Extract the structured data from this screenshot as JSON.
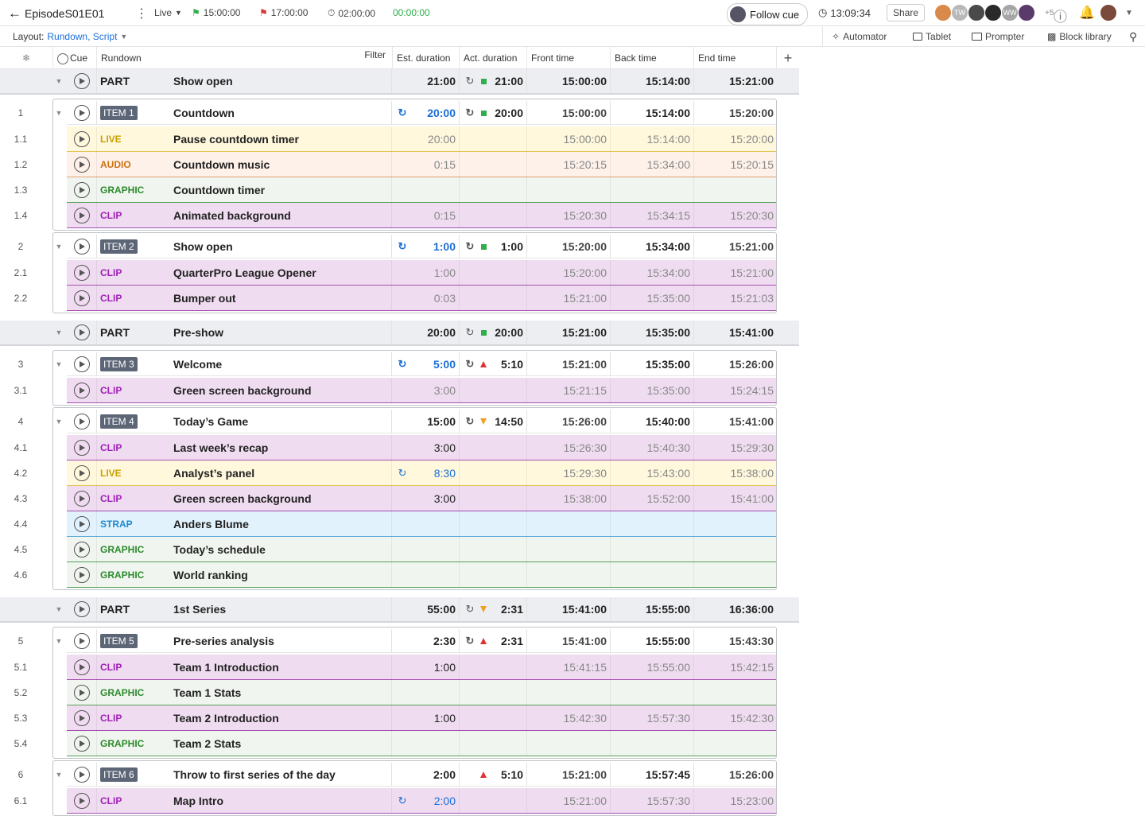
{
  "header": {
    "episode": "EpisodeS01E01",
    "mode": "Live",
    "start_time": "15:00:00",
    "end_flag_time": "17:00:00",
    "duration": "02:00:00",
    "timer": "00:00:00",
    "follow_cue": "Follow cue",
    "clock": "13:09:34",
    "share": "Share",
    "extra_users": "+5",
    "avatars": [
      "TW",
      "WW"
    ]
  },
  "layout": {
    "label": "Layout:",
    "value": "Rundown, Script",
    "automator": "Automator",
    "tablet": "Tablet",
    "prompter": "Prompter",
    "block_library": "Block library"
  },
  "columns": {
    "cue": "Cue",
    "rundown": "Rundown",
    "filter": "Filter",
    "est": "Est. duration",
    "act": "Act. duration",
    "front": "Front time",
    "back": "Back time",
    "end": "End time"
  },
  "colors": {
    "LIVE": "#c8a000",
    "AUDIO": "#d07010",
    "GRAPHIC": "#2e8a2e",
    "CLIP": "#a020b8",
    "STRAP": "#1a8ad0"
  },
  "rows": [
    {
      "kind": "part",
      "label": "PART",
      "title": "Show open",
      "est": "21:00",
      "act": "21:00",
      "status": "ok",
      "front": "15:00:00",
      "back": "15:14:00",
      "end": "15:21:00"
    },
    {
      "kind": "item",
      "num": "1",
      "badge": "ITEM 1",
      "title": "Countdown",
      "est": "20:00",
      "est_blue": true,
      "act": "20:00",
      "status": "ok",
      "front": "15:00:00",
      "back": "15:14:00",
      "end": "15:20:00"
    },
    {
      "kind": "sub",
      "num": "1.1",
      "type": "LIVE",
      "title": "Pause countdown timer",
      "est": "20:00",
      "act": "",
      "front": "15:00:00",
      "back": "15:14:00",
      "end": "15:20:00"
    },
    {
      "kind": "sub",
      "num": "1.2",
      "type": "AUDIO",
      "title": "Countdown music",
      "est": "0:15",
      "act": "",
      "front": "15:20:15",
      "back": "15:34:00",
      "end": "15:20:15"
    },
    {
      "kind": "sub",
      "num": "1.3",
      "type": "GRAPHIC",
      "title": "Countdown timer",
      "est": "",
      "act": "",
      "front": "",
      "back": "",
      "end": ""
    },
    {
      "kind": "sub",
      "num": "1.4",
      "type": "CLIP",
      "title": "Animated background",
      "est": "0:15",
      "act": "",
      "front": "15:20:30",
      "back": "15:34:15",
      "end": "15:20:30"
    },
    {
      "kind": "item",
      "num": "2",
      "badge": "ITEM 2",
      "title": "Show open",
      "est": "1:00",
      "est_blue": true,
      "act": "1:00",
      "status": "ok",
      "front": "15:20:00",
      "back": "15:34:00",
      "end": "15:21:00"
    },
    {
      "kind": "sub",
      "num": "2.1",
      "type": "CLIP",
      "title": "QuarterPro League Opener",
      "est": "1:00",
      "act": "",
      "front": "15:20:00",
      "back": "15:34:00",
      "end": "15:21:00"
    },
    {
      "kind": "sub",
      "num": "2.2",
      "type": "CLIP",
      "title": "Bumper out",
      "est": "0:03",
      "act": "",
      "front": "15:21:00",
      "back": "15:35:00",
      "end": "15:21:03"
    },
    {
      "kind": "part",
      "label": "PART",
      "title": "Pre-show",
      "est": "20:00",
      "act": "20:00",
      "status": "ok",
      "front": "15:21:00",
      "back": "15:35:00",
      "end": "15:41:00"
    },
    {
      "kind": "item",
      "num": "3",
      "badge": "ITEM 3",
      "title": "Welcome",
      "est": "5:00",
      "est_blue": true,
      "act": "5:10",
      "status": "over",
      "front": "15:21:00",
      "back": "15:35:00",
      "end": "15:26:00"
    },
    {
      "kind": "sub",
      "num": "3.1",
      "type": "CLIP",
      "title": "Green screen background",
      "est": "3:00",
      "act": "",
      "front": "15:21:15",
      "back": "15:35:00",
      "end": "15:24:15"
    },
    {
      "kind": "item",
      "num": "4",
      "badge": "ITEM 4",
      "title": "Today’s Game",
      "est": "15:00",
      "est_blue": false,
      "act": "14:50",
      "status": "under",
      "front": "15:26:00",
      "back": "15:40:00",
      "end": "15:41:00"
    },
    {
      "kind": "sub",
      "num": "4.1",
      "type": "CLIP",
      "title": "Last week’s recap",
      "est": "3:00",
      "est_dark": true,
      "act": "",
      "front": "15:26:30",
      "back": "15:40:30",
      "end": "15:29:30"
    },
    {
      "kind": "sub",
      "num": "4.2",
      "type": "LIVE",
      "title": "Analyst’s panel",
      "est": "8:30",
      "est_blue": true,
      "act": "",
      "front": "15:29:30",
      "back": "15:43:00",
      "end": "15:38:00"
    },
    {
      "kind": "sub",
      "num": "4.3",
      "type": "CLIP",
      "title": "Green screen background",
      "est": "3:00",
      "est_dark": true,
      "act": "",
      "front": "15:38:00",
      "back": "15:52:00",
      "end": "15:41:00"
    },
    {
      "kind": "sub",
      "num": "4.4",
      "type": "STRAP",
      "title": "Anders Blume",
      "est": "",
      "act": "",
      "front": "",
      "back": "",
      "end": ""
    },
    {
      "kind": "sub",
      "num": "4.5",
      "type": "GRAPHIC",
      "title": "Today’s schedule",
      "est": "",
      "act": "",
      "front": "",
      "back": "",
      "end": ""
    },
    {
      "kind": "sub",
      "num": "4.6",
      "type": "GRAPHIC",
      "title": "World ranking",
      "est": "",
      "act": "",
      "front": "",
      "back": "",
      "end": ""
    },
    {
      "kind": "part",
      "label": "PART",
      "title": "1st Series",
      "est": "55:00",
      "act": "2:31",
      "status": "under",
      "front": "15:41:00",
      "back": "15:55:00",
      "end": "16:36:00"
    },
    {
      "kind": "item",
      "num": "5",
      "badge": "ITEM 5",
      "title": "Pre-series analysis",
      "est": "2:30",
      "est_blue": false,
      "act": "2:31",
      "status": "over",
      "front": "15:41:00",
      "back": "15:55:00",
      "end": "15:43:30"
    },
    {
      "kind": "sub",
      "num": "5.1",
      "type": "CLIP",
      "title": "Team 1 Introduction",
      "est": "1:00",
      "est_dark": true,
      "act": "",
      "front": "15:41:15",
      "back": "15:55:00",
      "end": "15:42:15"
    },
    {
      "kind": "sub",
      "num": "5.2",
      "type": "GRAPHIC",
      "title": "Team 1 Stats",
      "est": "",
      "act": "",
      "front": "",
      "back": "",
      "end": ""
    },
    {
      "kind": "sub",
      "num": "5.3",
      "type": "CLIP",
      "title": "Team 2 Introduction",
      "est": "1:00",
      "est_dark": true,
      "act": "",
      "front": "15:42:30",
      "back": "15:57:30",
      "end": "15:42:30"
    },
    {
      "kind": "sub",
      "num": "5.4",
      "type": "GRAPHIC",
      "title": "Team 2 Stats",
      "est": "",
      "act": "",
      "front": "",
      "back": "",
      "end": ""
    },
    {
      "kind": "item",
      "num": "6",
      "badge": "ITEM 6",
      "title": "Throw to first series of the day",
      "est": "2:00",
      "est_blue": false,
      "nosync": true,
      "act": "5:10",
      "status": "over",
      "front": "15:21:00",
      "back": "15:57:45",
      "end": "15:26:00"
    },
    {
      "kind": "sub",
      "num": "6.1",
      "type": "CLIP",
      "title": "Map Intro",
      "est": "2:00",
      "est_blue": true,
      "act": "",
      "front": "15:21:00",
      "back": "15:57:30",
      "end": "15:23:00"
    }
  ]
}
